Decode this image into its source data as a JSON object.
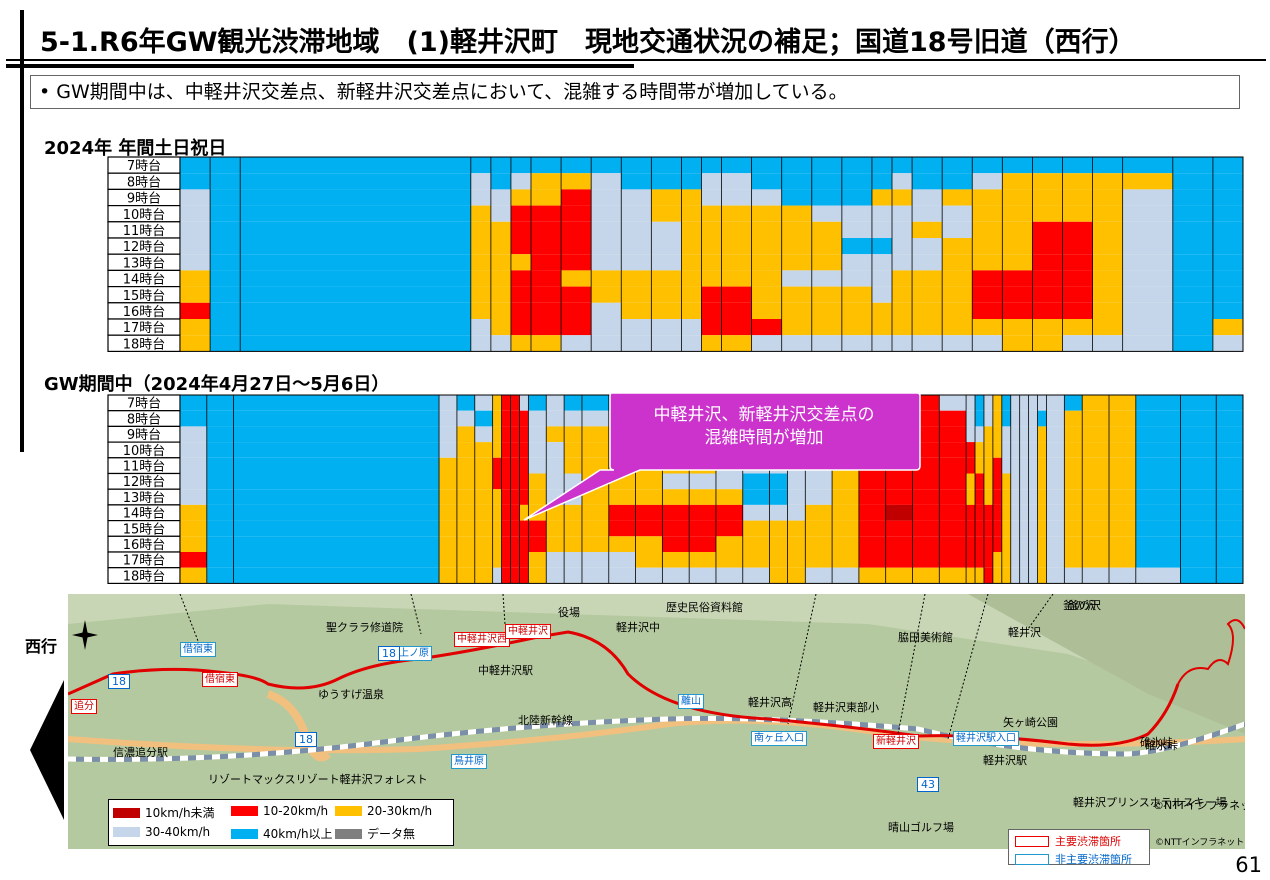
{
  "title": "5-1.R6年GW観光渋滞地域　(1)軽井沢町　現地交通状況の補足；国道18号旧道（西行）",
  "bullet": "•  GW期間中は、中軽井沢交差点、新軽井沢交差点において、混雑する時間帯が増加している。",
  "section1": "2024年 年間土日祝日",
  "section2": "GW期間中（2024年4月27日～5月6日）",
  "callout": [
    "中軽井沢、新軽井沢交差点の",
    "混雑時間が増加"
  ],
  "page_number": "61",
  "direction_label": "西行",
  "colors": {
    "c1": "#c00000",
    "c2": "#ff0000",
    "c3": "#ffc000",
    "c4": "#c6d6ea",
    "c5": "#00b0f0",
    "c6": "#7f7f7f",
    "callout": "#cc33cc"
  },
  "legend": [
    {
      "key": "c1",
      "label": "10km/h未満"
    },
    {
      "key": "c2",
      "label": "10-20km/h"
    },
    {
      "key": "c3",
      "label": "20-30km/h"
    },
    {
      "key": "c4",
      "label": "30-40km/h"
    },
    {
      "key": "c5",
      "label": "40km/h以上"
    },
    {
      "key": "c6",
      "label": "データ無"
    }
  ],
  "legend2": [
    "主要渋滞箇所",
    "非主要渋滞箇所"
  ],
  "map_labels": {
    "red_boxes": [
      "追分",
      "借宿東",
      "中軽井沢西",
      "中軽井沢",
      "新軽井沢"
    ],
    "blue_boxes": [
      "借宿東",
      "上ノ原",
      "離山",
      "南ヶ丘入口",
      "軽井沢駅入口",
      "鳥井原"
    ],
    "places": [
      "聖クララ修道院",
      "中軽井沢駅",
      "ゆうすげ温泉",
      "信濃追分駅",
      "リゾートマックスリゾート軽井沢フォレスト",
      "脇田美術館",
      "軽井沢",
      "軽井沢高",
      "軽井沢東部小",
      "矢ヶ崎公園",
      "軽井沢駅",
      "軽井沢プリンスホテルスキー場",
      "晴山ゴルフ場",
      "碓氷峠",
      "釜の沢",
      "北陸新幹線",
      "役場",
      "歴史民俗資料館",
      "軽井沢中",
      "©NTTインフラネット"
    ],
    "route_marks": [
      "18",
      "18",
      "18",
      "43"
    ]
  },
  "chart_data": [
    {
      "type": "heatmap",
      "title": "2024年 年間土日祝日",
      "rows": [
        "7時台",
        "8時台",
        "9時台",
        "10時台",
        "11時台",
        "12時台",
        "13時台",
        "14時台",
        "15時台",
        "16時台",
        "17時台",
        "18時台"
      ],
      "column_widths": [
        3,
        2,
        2,
        2,
        2,
        2,
        2,
        2,
        2,
        2,
        2,
        2,
        2,
        2,
        2,
        2,
        2,
        2,
        2,
        2,
        1,
        1,
        3,
        2,
        2,
        2,
        2,
        2,
        3,
        3,
        2,
        2,
        2,
        2,
        2,
        3,
        2,
        2,
        3,
        2,
        2,
        3,
        1,
        2,
        2,
        2,
        2,
        3,
        1,
        2,
        2,
        2,
        2,
        2,
        2,
        2,
        2,
        2,
        2,
        2,
        2,
        2,
        2,
        2,
        2,
        2,
        2,
        2,
        2,
        2,
        3,
        2,
        2,
        2,
        2,
        2,
        2,
        2,
        2,
        3,
        2,
        2
      ],
      "cols_simplified": 30,
      "col_units": [
        3,
        3,
        23,
        2,
        2,
        2,
        3,
        3,
        3,
        3,
        3,
        2,
        2,
        3,
        3,
        3,
        3,
        3,
        2,
        2,
        3,
        3,
        3,
        3,
        3,
        3,
        3,
        5,
        4,
        3
      ],
      "grid": [
        "c5c5c5c5c5c5c5c5c5c5c5c5c5c5c5c5c5c5c5c5c5c5c5c5c5c5c5c5c5c5",
        "c5c5c5c4c5c4c3c3c4c5c5c5c4c4c5c5c5c5c5c4c5c5c4c3c3c3c3c3c5c5",
        "c4c5c5c4c4c3c3c2c4c4c3c3c4c4c4c5c5c5c3c3c4c3c3c3c3c3c3c4c5c5",
        "c4c5c5c3c4c2c2c2c4c4c3c3c3c3c3c3c4c4c4c4c4c4c3c3c3c3c3c4c5c5",
        "c4c5c5c3c3c2c2c2c4c4c4c3c3c3c3c3c3c4c4c4c3c4c3c3c2c2c3c4c5c5",
        "c4c5c5c3c3c2c2c2c4c4c4c3c3c3c3c3c3c5c5c4c4c3c3c3c2c2c3c4c5c5",
        "c4c5c5c3c3c3c2c2c4c4c4c3c3c3c3c3c3c4c4c4c4c3c3c3c2c2c3c4c5c5",
        "c3c5c5c3c3c2c2c3c3c3c3c3c3c3c3c4c4c4c4c3c3c3c2c2c2c2c3c4c5c5",
        "c3c5c5c3c3c2c2c2c3c3c3c3c2c2c3c3c3c3c4c3c3c3c2c2c2c2c3c4c5c5",
        "c2c5c5c3c3c2c2c2c4c3c3c3c2c2c3c3c3c3c3c3c3c3c2c2c2c2c3c4c5c5",
        "c3c5c5c4c3c2c2c2c4c4c4c4c2c2c2c3c3c3c3c3c3c3c3c3c3c3c3c4c5c3",
        "c3c5c5c4c4c3c3c4c4c4c4c4c3c3c4c4c4c4c4c4c4c4c4c3c3c4c4c4c5c4"
      ]
    },
    {
      "type": "heatmap",
      "title": "GW期間中（2024年4月27日～5月6日）",
      "rows": [
        "7時台",
        "8時台",
        "9時台",
        "10時台",
        "11時台",
        "12時台",
        "13時台",
        "14時台",
        "15時台",
        "16時台",
        "17時台",
        "18時台"
      ],
      "col_units": [
        3,
        3,
        23,
        2,
        2,
        2,
        1,
        1,
        1,
        1,
        2,
        2,
        2,
        3,
        3,
        3,
        3,
        3,
        3,
        3,
        2,
        2,
        3,
        3,
        3,
        3,
        3,
        3,
        1,
        1,
        1,
        1,
        1,
        1,
        1,
        1,
        1,
        2,
        2,
        3,
        3,
        5,
        4,
        3
      ],
      "grid": [
        "c5c5c5c4c5c4c3c2c2c4c5c4c5c5c5c5c5c5c5c4c5c5c4c4c3c3c2c4c4c5c4c3c5c4c4c4c4c4c5c3c3c5c5c5",
        "c5c5c5c4c4c5c3c2c2c2c4c4c4c4c4c4c4c4c4c4c4c4c4c5c3c3c2c2c4c5c4c3c5c4c4c4c5c4c3c3c3c5c5c5",
        "c4c5c5c4c3c4c3c2c2c2c4c3c3c3c3c3c4c4c4c3c3c4c4c4c3c3c2c2c4c4c3c3c4c4c4c4c3c4c3c3c3c5c5c5",
        "c4c5c5c4c3c3c3c2c2c2c4c4c3c3c3c4c4c4c4c4c4c4c4c3c3c3c2c2c2c3c3c3c4c4c4c4c3c4c3c3c3c5c5c5",
        "c4c5c5c3c3c3c2c2c2c2c4c4c3c3c3c3c3c3c4c4c4c4c4c3c2c2c2c2c2c3c3c2c4c4c4c4c3c4c3c3c3c5c5c5",
        "c4c5c5c3c3c3c2c2c2c2c3c4c4c3c3c3c4c4c4c5c5c4c4c3c2c2c2c2c3c2c3c2c3c4c4c4c3c4c3c3c3c5c5c5",
        "c4c5c5c3c3c3c3c2c2c2c3c4c4c3c3c3c3c3c3c5c5c4c4c3c2c2c2c2c3c2c3c2c3c4c4c4c3c4c3c3c3c5c5c5",
        "c3c5c5c3c3c3c3c2c2c3c3c3c3c3c2c2c2c2c2c4c4c4c3c3c2c1c2c2c2c2c2c2c3c4c4c4c3c4c3c3c3c5c5c5",
        "c3c5c5c3c3c3c3c2c2c2c2c3c3c3c2c2c2c2c2c3c3c3c3c3c2c2c2c2c2c2c2c2c3c4c4c4c3c4c3c3c3c5c5c5",
        "c3c5c5c3c3c3c3c2c2c2c2c3c3c3c3c3c2c2c3c3c3c3c3c3c2c2c2c2c2c2c2c2c3c4c4c4c3c4c3c3c3c5c5c5",
        "c2c5c5c3c3c3c3c2c2c2c3c4c4c4c4c3c3c3c3c3c3c3c3c3c2c2c2c2c2c2c2c3c3c4c4c4c3c4c3c3c3c5c5c5",
        "c3c5c5c3c3c3c4c2c2c2c3c4c4c4c4c4c4c4c4c4c3c3c4c4c3c3c3c3c3c3c2c3c3c4c4c4c3c4c4c4c4c4c5c5"
      ]
    }
  ]
}
